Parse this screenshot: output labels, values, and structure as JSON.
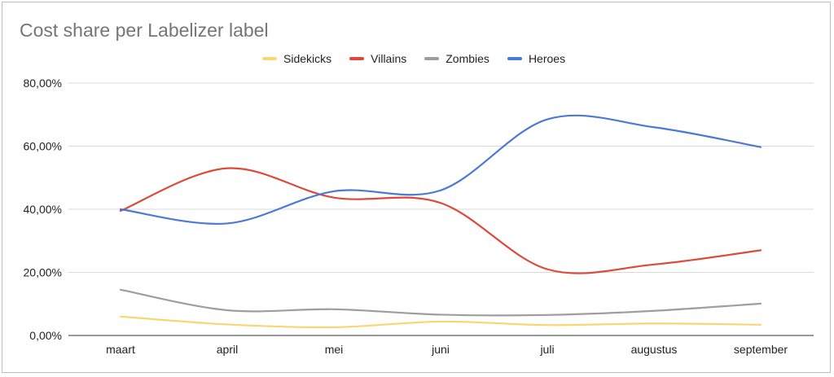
{
  "chart_data": {
    "type": "line",
    "title": "Cost share per Labelizer label",
    "categories": [
      "maart",
      "april",
      "mei",
      "juni",
      "juli",
      "augustus",
      "september"
    ],
    "yticks": [
      "0,00%",
      "20,00%",
      "40,00%",
      "60,00%",
      "80,00%"
    ],
    "ylim": [
      0,
      80
    ],
    "grid": true,
    "smooth": true,
    "legend_position": "top",
    "series": [
      {
        "name": "Sidekicks",
        "color": "#f7d774",
        "values": [
          6.0,
          3.5,
          2.6,
          4.4,
          3.3,
          3.8,
          3.4
        ]
      },
      {
        "name": "Villains",
        "color": "#db4b3a",
        "values": [
          39.5,
          53.0,
          43.7,
          42.0,
          21.0,
          22.5,
          27.0
        ]
      },
      {
        "name": "Zombies",
        "color": "#9e9e9e",
        "values": [
          14.5,
          8.0,
          8.3,
          6.6,
          6.5,
          7.8,
          10.1
        ]
      },
      {
        "name": "Heroes",
        "color": "#4c78d6",
        "values": [
          40.0,
          35.5,
          45.7,
          46.0,
          68.5,
          66.0,
          59.7
        ]
      }
    ]
  }
}
